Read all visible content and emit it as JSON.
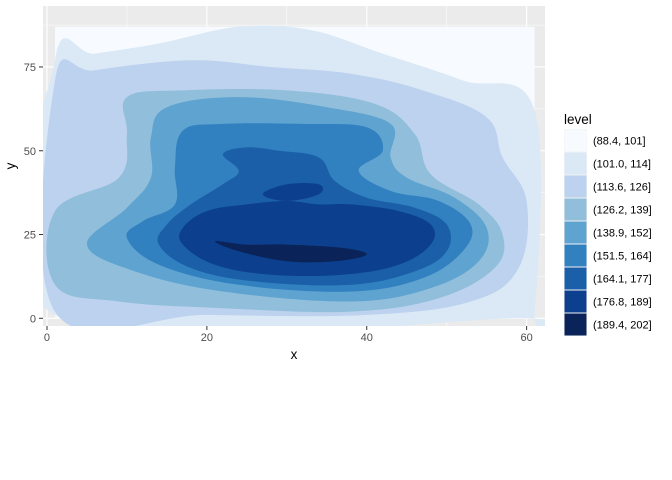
{
  "chart_data": {
    "type": "filled-contour",
    "xlabel": "x",
    "ylabel": "y",
    "xlim": [
      -0.5,
      62.3
    ],
    "ylim": [
      -2.3,
      93.2
    ],
    "x_ticks": [
      0,
      20,
      40,
      60
    ],
    "y_ticks": [
      0,
      25,
      50,
      75
    ],
    "grid": true,
    "legend": {
      "title": "level",
      "position": "right",
      "entries": [
        {
          "label": "(88.4, 101]",
          "color": "#f7fbff"
        },
        {
          "label": "(101.0, 114]",
          "color": "#dbe8f6"
        },
        {
          "label": "(113.6, 126]",
          "color": "#bcd2ee"
        },
        {
          "label": "(126.2, 139]",
          "color": "#91bfdb"
        },
        {
          "label": "(138.9, 152]",
          "color": "#5fa3d0"
        },
        {
          "label": "(151.5, 164]",
          "color": "#3180bf"
        },
        {
          "label": "(164.1, 177]",
          "color": "#1a5fa8"
        },
        {
          "label": "(176.8, 189]",
          "color": "#0c408e"
        },
        {
          "label": "(189.4, 202]",
          "color": "#0a2459"
        }
      ]
    },
    "contour_bands": [
      {
        "level": "(88.4, 101]",
        "points": [
          [
            1,
            0
          ],
          [
            61,
            0
          ],
          [
            61,
            87
          ],
          [
            1,
            87
          ]
        ]
      },
      {
        "level": "(101.0, 114]",
        "points": [
          [
            1,
            1
          ],
          [
            59,
            0
          ],
          [
            61,
            1
          ],
          [
            61,
            62
          ],
          [
            52,
            71
          ],
          [
            42,
            79
          ],
          [
            33,
            86
          ],
          [
            24,
            87
          ],
          [
            14,
            82
          ],
          [
            6,
            79
          ],
          [
            1,
            77
          ]
        ]
      },
      {
        "level": "(113.6, 126]",
        "points": [
          [
            1,
            2
          ],
          [
            20,
            1
          ],
          [
            40,
            1
          ],
          [
            53,
            5
          ],
          [
            59,
            15
          ],
          [
            60,
            35
          ],
          [
            57,
            48
          ],
          [
            55,
            60
          ],
          [
            47,
            68
          ],
          [
            38,
            73
          ],
          [
            28,
            75
          ],
          [
            18,
            77
          ],
          [
            6,
            74
          ],
          [
            1,
            71
          ]
        ]
      },
      {
        "level": "(126.2, 139]",
        "points": [
          [
            1,
            10
          ],
          [
            9,
            5
          ],
          [
            22,
            3
          ],
          [
            38,
            2
          ],
          [
            49,
            6
          ],
          [
            56,
            15
          ],
          [
            57,
            25
          ],
          [
            54,
            34
          ],
          [
            48,
            43
          ],
          [
            46,
            55
          ],
          [
            41,
            64
          ],
          [
            30,
            68
          ],
          [
            17,
            68
          ],
          [
            10,
            66
          ],
          [
            10,
            55
          ],
          [
            9,
            42
          ],
          [
            1,
            32
          ]
        ]
      },
      {
        "level": "(138.9, 152]",
        "points": [
          [
            5,
            22
          ],
          [
            11,
            14
          ],
          [
            22,
            8
          ],
          [
            38,
            5
          ],
          [
            48,
            9
          ],
          [
            54,
            17
          ],
          [
            55,
            27
          ],
          [
            51,
            36
          ],
          [
            45,
            42
          ],
          [
            43,
            48
          ],
          [
            43,
            58
          ],
          [
            35,
            63
          ],
          [
            24,
            66
          ],
          [
            15,
            63
          ],
          [
            13,
            54
          ],
          [
            13,
            42
          ],
          [
            10,
            33
          ]
        ]
      },
      {
        "level": "(151.5, 164]",
        "points": [
          [
            10,
            24
          ],
          [
            14,
            16
          ],
          [
            24,
            10
          ],
          [
            38,
            8
          ],
          [
            47,
            12
          ],
          [
            52,
            20
          ],
          [
            53,
            28
          ],
          [
            49,
            35
          ],
          [
            43,
            38
          ],
          [
            39,
            44
          ],
          [
            42,
            50
          ],
          [
            40,
            57
          ],
          [
            32,
            58
          ],
          [
            22,
            58
          ],
          [
            17,
            56
          ],
          [
            16,
            45
          ],
          [
            16,
            34
          ],
          [
            12,
            29
          ]
        ]
      },
      {
        "level": "(164.1, 177]",
        "points": [
          [
            14,
            22
          ],
          [
            18,
            15
          ],
          [
            26,
            11
          ],
          [
            38,
            10
          ],
          [
            46,
            14
          ],
          [
            50,
            20
          ],
          [
            50,
            28
          ],
          [
            46,
            33
          ],
          [
            40,
            36
          ],
          [
            36,
            41
          ],
          [
            34,
            48
          ],
          [
            29,
            50
          ],
          [
            25,
            51
          ],
          [
            22,
            49
          ],
          [
            24,
            44
          ],
          [
            22,
            40
          ],
          [
            18,
            34
          ],
          [
            15,
            28
          ]
        ]
      },
      {
        "level": "(176.8, 189]",
        "points": [
          [
            17,
            22
          ],
          [
            21,
            16
          ],
          [
            28,
            13
          ],
          [
            37,
            13
          ],
          [
            44,
            16
          ],
          [
            48,
            22
          ],
          [
            48,
            28
          ],
          [
            44,
            32
          ],
          [
            38,
            34
          ],
          [
            34,
            34
          ],
          [
            30,
            35
          ],
          [
            25,
            34
          ],
          [
            20,
            32
          ],
          [
            17,
            27
          ]
        ]
      },
      {
        "level": "(189.4, 202]",
        "points": [
          [
            21,
            23
          ],
          [
            24,
            20
          ],
          [
            30,
            17
          ],
          [
            36,
            17
          ],
          [
            40,
            19
          ],
          [
            37,
            21
          ],
          [
            30,
            22
          ],
          [
            25,
            22
          ]
        ]
      },
      {
        "level": "(176.8, 189]",
        "points": [
          [
            27,
            37
          ],
          [
            30,
            40
          ],
          [
            34,
            40
          ],
          [
            34,
            37
          ],
          [
            30,
            35
          ]
        ]
      }
    ]
  }
}
